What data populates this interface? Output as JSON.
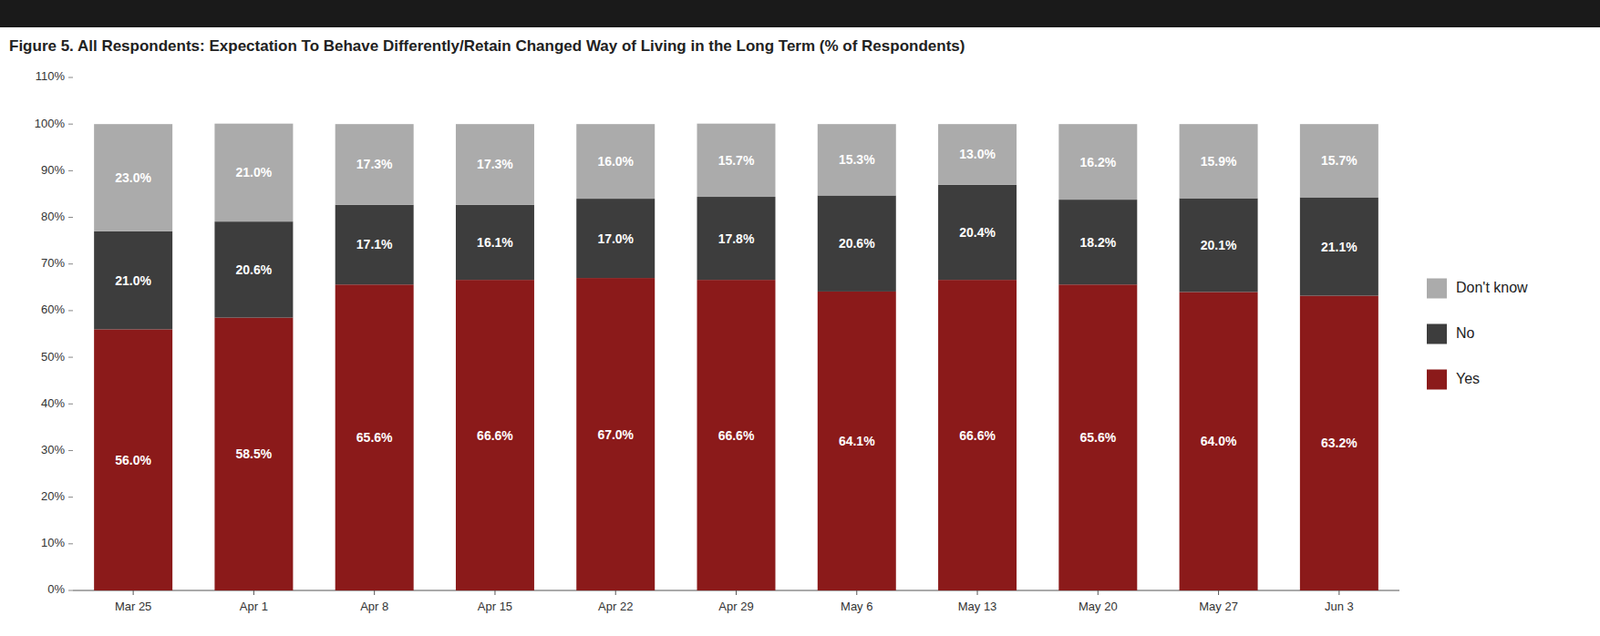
{
  "chart_data": {
    "type": "bar",
    "title": "Figure 5. All Respondents: Expectation To Behave Differently/Retain Changed Way of Living in the Long Term (% of Respondents)",
    "categories": [
      "Mar 25",
      "Apr 1",
      "Apr 8",
      "Apr 15",
      "Apr 22",
      "Apr 29",
      "May 6",
      "May 13",
      "May 20",
      "May 27",
      "Jun 3"
    ],
    "series": [
      {
        "name": "Yes",
        "color": "#8B1A1A",
        "values": [
          56.0,
          58.5,
          65.6,
          66.6,
          67.0,
          66.6,
          64.1,
          66.6,
          65.6,
          64.0,
          63.2
        ],
        "value_labels": [
          "56.0%",
          "58.5%",
          "65.6%",
          "66.6%",
          "67.0%",
          "66.6%",
          "64.1%",
          "66.6%",
          "65.6%",
          "64.0%",
          "63.2%"
        ]
      },
      {
        "name": "No",
        "color": "#3D3D3D",
        "values": [
          21.0,
          20.6,
          17.1,
          16.1,
          17.0,
          17.8,
          20.6,
          20.4,
          18.2,
          20.1,
          21.1
        ],
        "value_labels": [
          "21.0%",
          "20.6%",
          "17.1%",
          "16.1%",
          "17.0%",
          "17.8%",
          "20.6%",
          "20.4%",
          "18.2%",
          "20.1%",
          "21.1%"
        ]
      },
      {
        "name": "Don't know",
        "color": "#ABABAB",
        "values": [
          23.0,
          21.0,
          17.3,
          17.3,
          16.0,
          15.7,
          15.3,
          13.0,
          16.2,
          15.9,
          15.7
        ],
        "value_labels": [
          "23.0%",
          "21.0%",
          "17.3%",
          "17.3%",
          "16.0%",
          "15.7%",
          "15.3%",
          "13.0%",
          "16.2%",
          "15.9%",
          "15.7%"
        ]
      }
    ],
    "stacked": true,
    "data_labels": true,
    "ylim": [
      0,
      110
    ],
    "yticks": [
      {
        "value": 0,
        "label": "0%"
      },
      {
        "value": 10,
        "label": "10%"
      },
      {
        "value": 20,
        "label": "20%"
      },
      {
        "value": 30,
        "label": "30%"
      },
      {
        "value": 40,
        "label": "40%"
      },
      {
        "value": 50,
        "label": "50%"
      },
      {
        "value": 60,
        "label": "60%"
      },
      {
        "value": 70,
        "label": "70%"
      },
      {
        "value": 80,
        "label": "80%"
      },
      {
        "value": 90,
        "label": "90%"
      },
      {
        "value": 100,
        "label": "100%"
      },
      {
        "value": 110,
        "label": "110%"
      }
    ],
    "grid": false,
    "legend": "right"
  }
}
